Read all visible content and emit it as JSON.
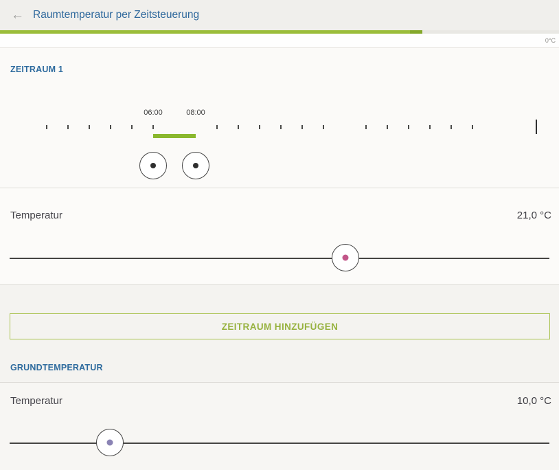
{
  "header": {
    "back_glyph": "←",
    "title": "Raumtemperatur per Zeitsteuerung"
  },
  "top": {
    "progress_percent": 75.5,
    "scale_label": "0°C"
  },
  "zeitraum1": {
    "section_label": "ZEITRAUM 1",
    "start_time": "06:00",
    "end_time": "08:00",
    "timeline_tick_hours": [
      1,
      2,
      3,
      4,
      5,
      6,
      9,
      10,
      11,
      12,
      13,
      14,
      16,
      17,
      18,
      19,
      20,
      21
    ],
    "timeline_end_hour": 24,
    "temperature_label": "Temperatur",
    "temperature_value": "21,0 °C",
    "slider_percent": 62.2
  },
  "actions": {
    "add_period_label": "ZEITRAUM HINZUFÜGEN"
  },
  "grundtemperatur": {
    "section_label": "GRUNDTEMPERATUR",
    "temperature_label": "Temperatur",
    "temperature_value": "10,0 °C",
    "slider_percent": 18.6
  },
  "colors": {
    "accent_green": "#9bbd3a",
    "accent_green_dark": "#84a82a",
    "timeline_green": "#8ab82e",
    "label_blue": "#2e6b9e",
    "dot_dark": "#2e2e2e",
    "dot_pink": "#c25689",
    "dot_purple": "#8a83b4",
    "button_green": "#97b23f"
  }
}
